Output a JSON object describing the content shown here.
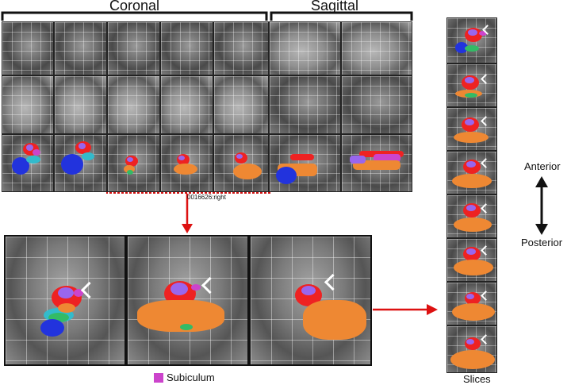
{
  "headers": {
    "coronal": "Coronal",
    "sagittal": "Sagittal"
  },
  "crop_caption": "0016626:right",
  "legend": {
    "label": "Subiculum",
    "color": "#cc44cc"
  },
  "slices_label": "Slices",
  "direction": {
    "anterior": "Anterior",
    "posterior": "Posterior"
  },
  "colors": {
    "red": "#ee2222",
    "purple": "#9966ee",
    "magenta": "#cc44cc",
    "orange": "#ee8833",
    "green": "#33bb66",
    "blue": "#2233dd",
    "cyan": "#33bbcc",
    "arrow": "#dd1111",
    "highlight_box": "#cc1111"
  }
}
